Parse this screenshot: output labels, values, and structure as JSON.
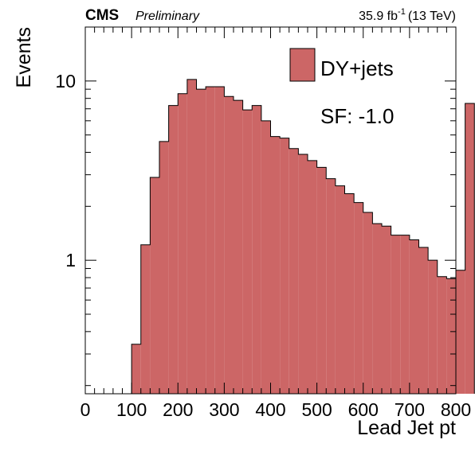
{
  "header": {
    "experiment": "CMS",
    "status": "Preliminary",
    "lumi_value": "35.9 fb",
    "lumi_exp": "-1",
    "energy": "(13 TeV)"
  },
  "legend": {
    "entry": "DY+jets",
    "color": "#cc6666"
  },
  "annotation": "SF: -1.0",
  "chart_data": {
    "type": "histogram",
    "xlabel": "Lead Jet pt",
    "ylabel": "Events",
    "xlim": [
      0,
      800
    ],
    "ylim": [
      0.18,
      20
    ],
    "yscale": "log",
    "xticks": [
      "0",
      "100",
      "200",
      "300",
      "400",
      "500",
      "600",
      "700",
      "800"
    ],
    "yticks": [
      {
        "value": 1,
        "label": "1"
      },
      {
        "value": 10,
        "label": "10"
      }
    ],
    "bin_width": 20,
    "x_start": 100,
    "values": [
      0.34,
      1.22,
      2.9,
      4.6,
      7.3,
      8.5,
      10.2,
      9.0,
      9.3,
      9.3,
      8.2,
      7.8,
      6.9,
      7.3,
      6.0,
      4.9,
      4.8,
      4.2,
      3.9,
      3.6,
      3.3,
      2.85,
      2.6,
      2.35,
      2.1,
      1.85,
      1.6,
      1.55,
      1.38,
      1.38,
      1.3,
      1.18,
      1.0,
      0.81,
      0.79,
      0.88,
      7.5
    ],
    "legend_position": "top-right"
  }
}
